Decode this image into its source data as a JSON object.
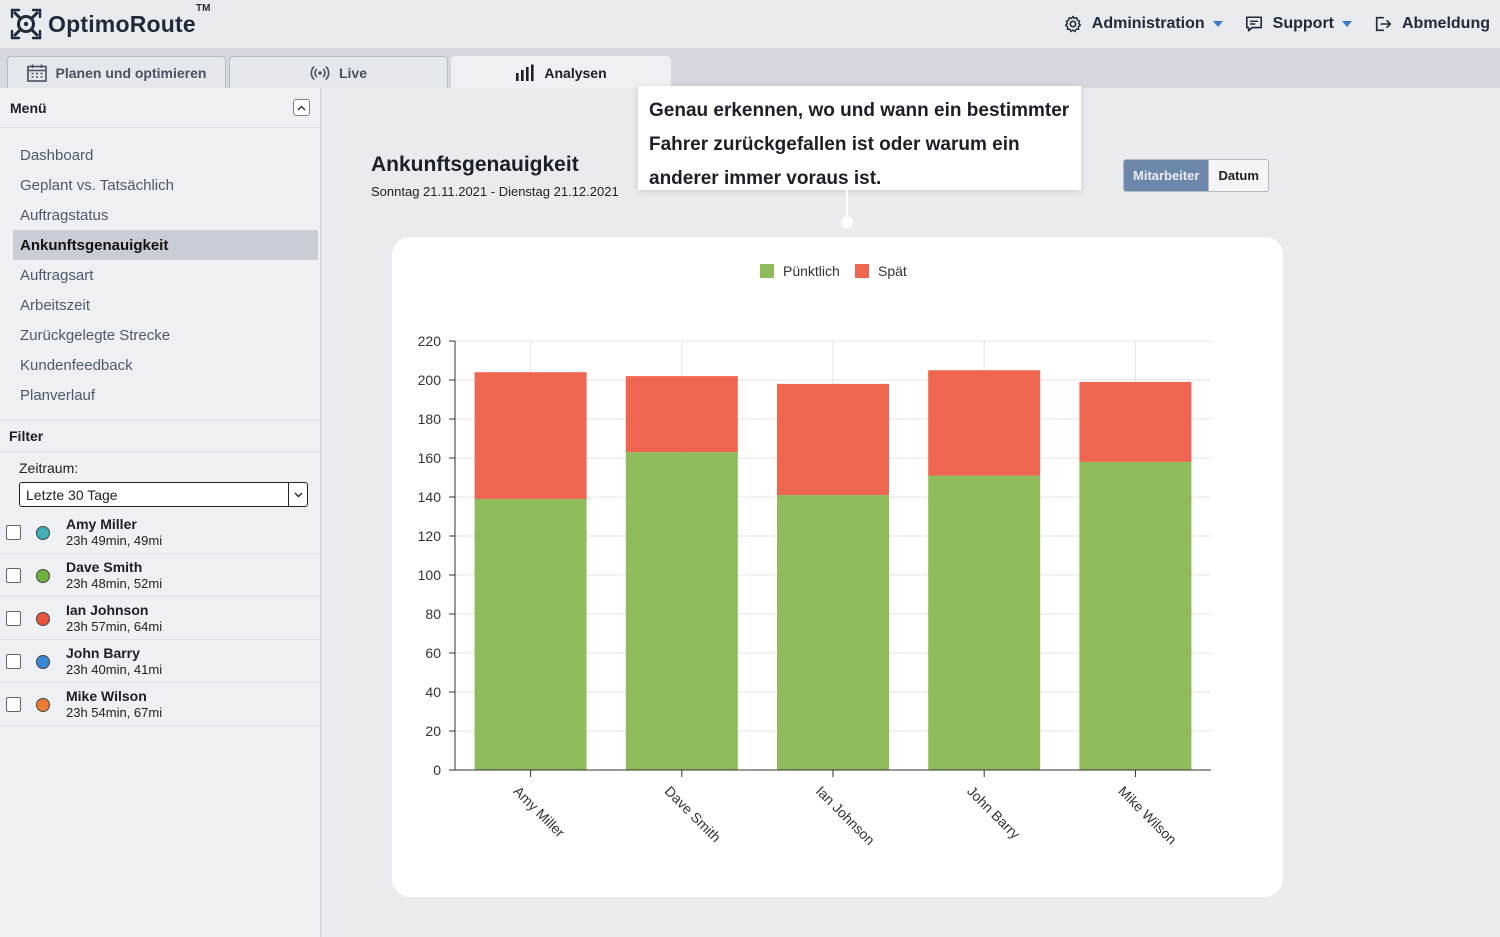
{
  "app": {
    "name": "OptimoRoute",
    "trademark": "TM"
  },
  "header": {
    "nav": [
      {
        "label": "Administration",
        "icon": "gear-icon",
        "dropdown": true
      },
      {
        "label": "Support",
        "icon": "chat-icon",
        "dropdown": true
      },
      {
        "label": "Abmeldung",
        "icon": "logout-icon",
        "dropdown": false
      }
    ]
  },
  "tabs": [
    {
      "label": "Planen und optimieren",
      "icon": "calendar-icon",
      "active": false
    },
    {
      "label": "Live",
      "icon": "broadcast-icon",
      "active": false
    },
    {
      "label": "Analysen",
      "icon": "bar-chart-icon",
      "active": true
    }
  ],
  "sidebar": {
    "menu_title": "Menü",
    "items": [
      {
        "label": "Dashboard",
        "active": false
      },
      {
        "label": "Geplant vs. Tatsächlich",
        "active": false
      },
      {
        "label": "Auftragstatus",
        "active": false
      },
      {
        "label": "Ankunftsgenauigkeit",
        "active": true
      },
      {
        "label": "Auftragsart",
        "active": false
      },
      {
        "label": "Arbeitszeit",
        "active": false
      },
      {
        "label": "Zurückgelegte Strecke",
        "active": false
      },
      {
        "label": "Kundenfeedback",
        "active": false
      },
      {
        "label": "Planverlauf",
        "active": false
      }
    ],
    "filter_title": "Filter",
    "zeitraum_label": "Zeitraum:",
    "zeitraum_value": "Letzte 30 Tage",
    "drivers": [
      {
        "name": "Amy Miller",
        "stats": "23h 49min, 49mi",
        "color": "#3fb0b6"
      },
      {
        "name": "Dave Smith",
        "stats": "23h 48min, 52mi",
        "color": "#6cb33f"
      },
      {
        "name": "Ian Johnson",
        "stats": "23h 57min, 64mi",
        "color": "#e8543c"
      },
      {
        "name": "John Barry",
        "stats": "23h 40min, 41mi",
        "color": "#3a86d9"
      },
      {
        "name": "Mike Wilson",
        "stats": "23h 54min, 67mi",
        "color": "#ee7a2f"
      }
    ]
  },
  "main": {
    "title": "Ankunftsgenauigkeit",
    "subtitle": "Sonntag 21.11.2021 - Dienstag 21.12.2021",
    "tooltip_lines": [
      "Genau erkennen, wo und wann ein bestimmter",
      "Fahrer zurückgefallen ist oder warum ein",
      "anderer immer voraus ist."
    ],
    "toggle": {
      "mitarbeiter": "Mitarbeiter",
      "datum": "Datum",
      "active": "mitarbeiter"
    }
  },
  "colors": {
    "on_time": "#8fbb5a",
    "late": "#ee6650"
  },
  "chart_data": {
    "type": "bar",
    "stacked": true,
    "categories": [
      "Amy Miller",
      "Dave Smith",
      "Ian Johnson",
      "John Barry",
      "Mike Wilson"
    ],
    "series": [
      {
        "name": "Pünktlich",
        "values": [
          139,
          163,
          141,
          151,
          158
        ]
      },
      {
        "name": "Spät",
        "values": [
          65,
          39,
          57,
          54,
          41
        ]
      }
    ],
    "ylim": [
      0,
      220
    ],
    "yticks": [
      0,
      20,
      40,
      60,
      80,
      100,
      120,
      140,
      160,
      180,
      200,
      220
    ],
    "grid": true,
    "legend": "top-center"
  }
}
